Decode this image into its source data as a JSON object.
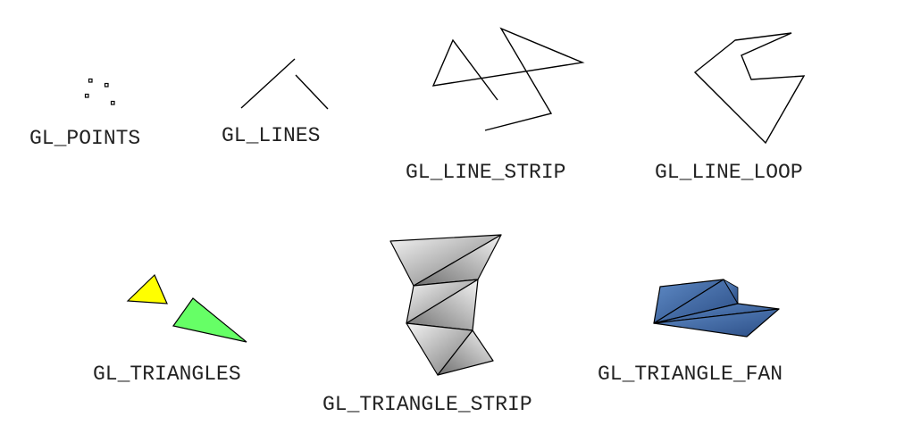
{
  "labels": {
    "points": "GL_POINTS",
    "lines": "GL_LINES",
    "line_strip": "GL_LINE_STRIP",
    "line_loop": "GL_LINE_LOOP",
    "triangles": "GL_TRIANGLES",
    "triangle_strip": "GL_TRIANGLE_STRIP",
    "triangle_fan": "GL_TRIANGLE_FAN"
  },
  "colors": {
    "background": "#ffffff",
    "stroke": "#000000",
    "triangle_yellow": "#ffff00",
    "triangle_green": "#66ff66",
    "strip_light": "#f2f2f2",
    "strip_dark": "#7a7a7a",
    "fan_light": "#5b86c0",
    "fan_dark": "#2d4f86",
    "label_text": "#222222"
  }
}
